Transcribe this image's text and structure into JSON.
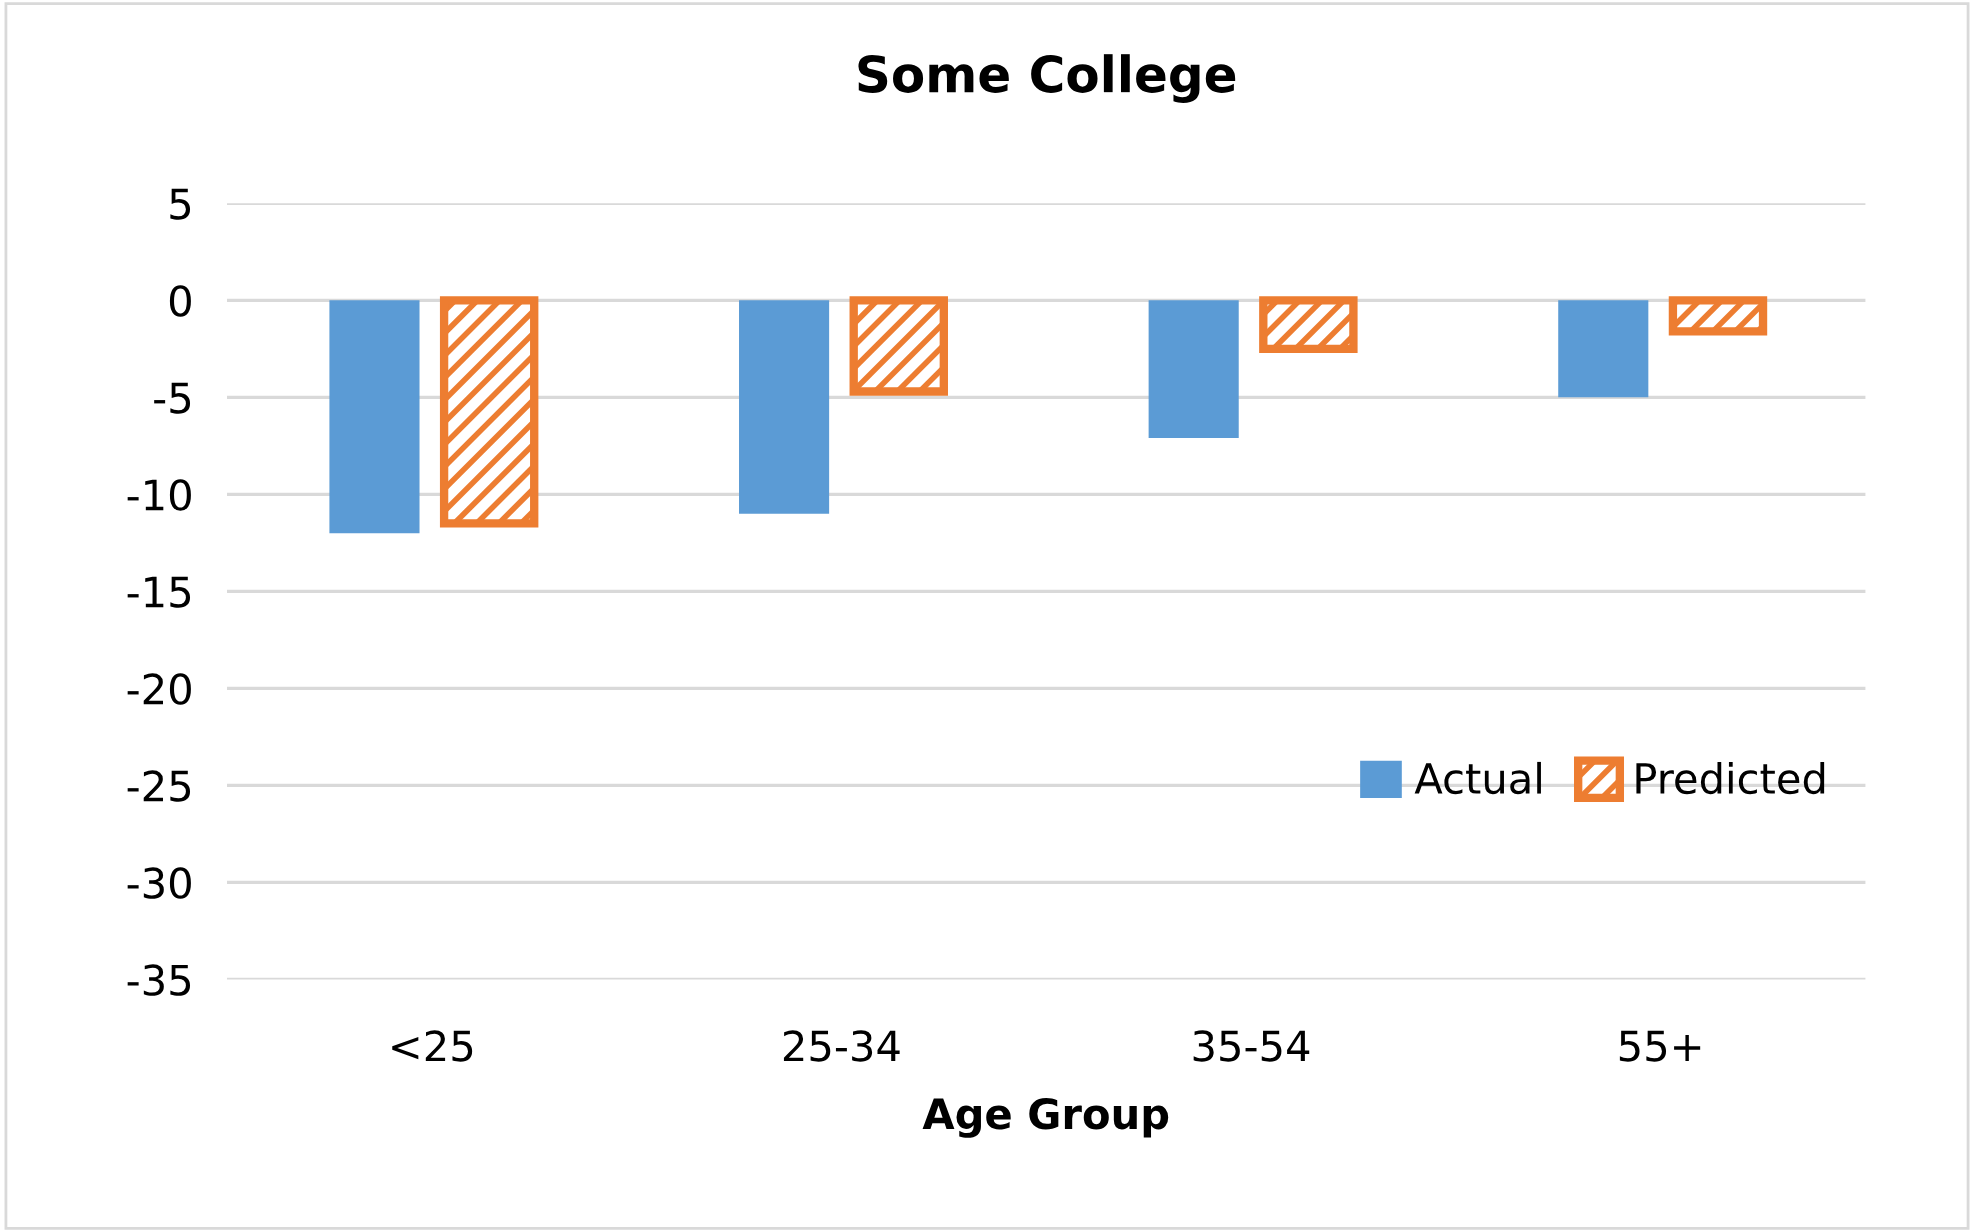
{
  "chart_data": {
    "type": "bar",
    "title": "Some College",
    "xlabel": "Age Group",
    "categories": [
      "<25",
      "25-34",
      "35-54",
      "55+"
    ],
    "series": [
      {
        "name": "Actual",
        "color": "#5b9bd5",
        "values": [
          -12,
          -11,
          -7.1,
          -5
        ]
      },
      {
        "name": "Predicted",
        "color": "#ed7d31",
        "values": [
          -11.5,
          -4.7,
          -2.5,
          -1.6
        ]
      }
    ],
    "ylim": [
      -35,
      5
    ],
    "yticks": [
      -35,
      -30,
      -25,
      -20,
      -15,
      -10,
      -5,
      0,
      5
    ],
    "grid": "y",
    "legend": "bottom right"
  }
}
